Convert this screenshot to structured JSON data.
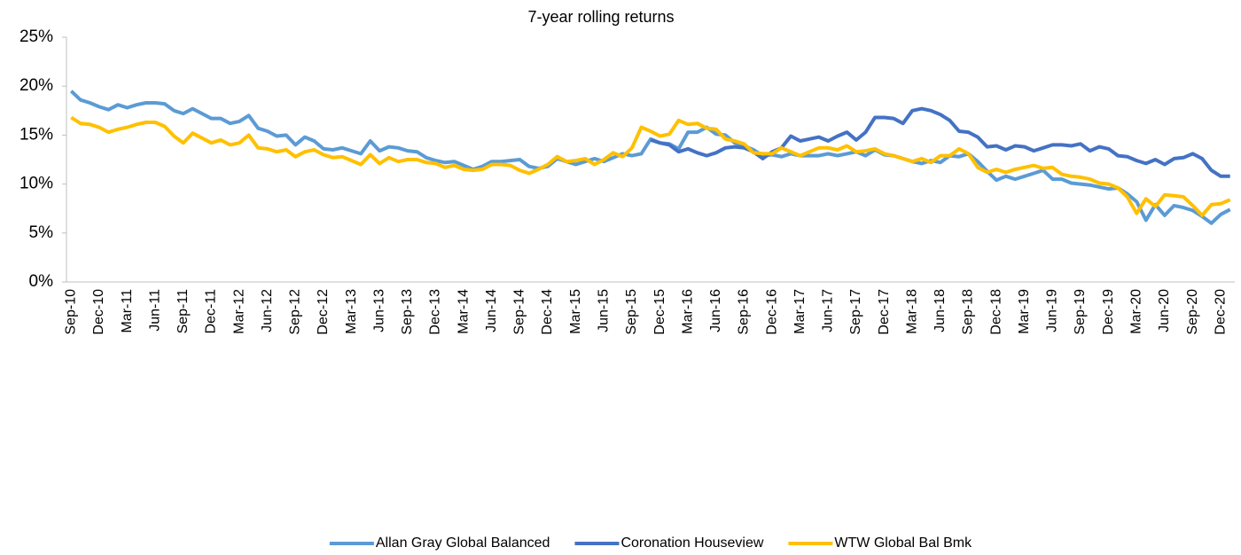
{
  "chart_data": {
    "type": "line",
    "title": "7-year rolling returns",
    "categories": [
      "Sep-10",
      null,
      null,
      "Dec-10",
      null,
      null,
      "Mar-11",
      null,
      null,
      "Jun-11",
      null,
      null,
      "Sep-11",
      null,
      null,
      "Dec-11",
      null,
      null,
      "Mar-12",
      null,
      null,
      "Jun-12",
      null,
      null,
      "Sep-12",
      null,
      null,
      "Dec-12",
      null,
      null,
      "Mar-13",
      null,
      null,
      "Jun-13",
      null,
      null,
      "Sep-13",
      null,
      null,
      "Dec-13",
      null,
      null,
      "Mar-14",
      null,
      null,
      "Jun-14",
      null,
      null,
      "Sep-14",
      null,
      null,
      "Dec-14",
      null,
      null,
      "Mar-15",
      null,
      null,
      "Jun-15",
      null,
      null,
      "Sep-15",
      null,
      null,
      "Dec-15",
      null,
      null,
      "Mar-16",
      null,
      null,
      "Jun-16",
      null,
      null,
      "Sep-16",
      null,
      null,
      "Dec-16",
      null,
      null,
      "Mar-17",
      null,
      null,
      "Jun-17",
      null,
      null,
      "Sep-17",
      null,
      null,
      "Dec-17",
      null,
      null,
      "Mar-18",
      null,
      null,
      "Jun-18",
      null,
      null,
      "Sep-18",
      null,
      null,
      "Dec-18",
      null,
      null,
      "Mar-19",
      null,
      null,
      "Jun-19",
      null,
      null,
      "Sep-19",
      null,
      null,
      "Dec-19",
      null,
      null,
      "Mar-20",
      null,
      null,
      "Jun-20",
      null,
      null,
      "Sep-20",
      null,
      null,
      "Dec-20",
      null
    ],
    "series": [
      {
        "name": "Allan Gray Global Balanced",
        "color": "#5b9bd5",
        "values": [
          19.5,
          18.6,
          18.3,
          17.9,
          17.6,
          18.1,
          17.8,
          18.1,
          18.3,
          18.3,
          18.2,
          17.5,
          17.2,
          17.7,
          17.2,
          16.7,
          16.7,
          16.2,
          16.4,
          17.0,
          15.7,
          15.4,
          14.9,
          15.0,
          14.0,
          14.8,
          14.4,
          13.6,
          13.5,
          13.7,
          13.4,
          13.1,
          14.4,
          13.4,
          13.8,
          13.7,
          13.4,
          13.3,
          12.7,
          12.4,
          12.2,
          12.3,
          11.9,
          11.5,
          11.8,
          12.3,
          12.3,
          12.4,
          12.5,
          11.8,
          11.6,
          11.8,
          12.6,
          12.3,
          12.0,
          12.3,
          12.6,
          12.3,
          12.7,
          13.1,
          12.9,
          13.1,
          14.6,
          14.2,
          14.1,
          13.6,
          15.3,
          15.3,
          15.8,
          15.1,
          15.0,
          14.2,
          13.9,
          13.5,
          12.9,
          13.0,
          12.8,
          13.1,
          12.9,
          12.9,
          12.9,
          13.1,
          12.9,
          13.1,
          13.3,
          12.9,
          13.5,
          13.0,
          12.9,
          12.6,
          12.3,
          12.1,
          12.4,
          12.2,
          12.9,
          12.8,
          13.1,
          12.3,
          11.3,
          10.4,
          10.8,
          10.5,
          10.8,
          11.1,
          11.4,
          10.5,
          10.5,
          10.1,
          10.0,
          9.9,
          9.7,
          9.5,
          9.6,
          9.0,
          8.2,
          6.3,
          7.9,
          6.8,
          7.8,
          7.6,
          7.3,
          6.7,
          6.0,
          6.9,
          7.4
        ]
      },
      {
        "name": "Coronation Houseview",
        "color": "#4472c4",
        "values": [
          null,
          null,
          null,
          null,
          null,
          null,
          null,
          null,
          null,
          null,
          null,
          null,
          null,
          null,
          null,
          null,
          null,
          null,
          null,
          null,
          null,
          null,
          null,
          null,
          null,
          null,
          null,
          null,
          null,
          null,
          null,
          null,
          null,
          null,
          null,
          null,
          null,
          null,
          null,
          null,
          null,
          null,
          null,
          null,
          null,
          null,
          null,
          null,
          null,
          null,
          null,
          null,
          null,
          null,
          null,
          null,
          null,
          null,
          null,
          null,
          null,
          null,
          14.5,
          14.2,
          14.0,
          13.3,
          13.6,
          13.2,
          12.9,
          13.2,
          13.7,
          13.8,
          13.7,
          13.3,
          12.6,
          13.3,
          13.7,
          14.9,
          14.4,
          14.6,
          14.8,
          14.4,
          14.9,
          15.3,
          14.5,
          15.3,
          16.8,
          16.8,
          16.7,
          16.2,
          17.5,
          17.7,
          17.5,
          17.1,
          16.5,
          15.4,
          15.3,
          14.8,
          13.8,
          13.9,
          13.5,
          13.9,
          13.8,
          13.4,
          13.7,
          14.0,
          14.0,
          13.9,
          14.1,
          13.4,
          13.8,
          13.6,
          12.9,
          12.8,
          12.4,
          12.1,
          12.5,
          12.0,
          12.6,
          12.7,
          13.1,
          12.6,
          11.4,
          10.8,
          10.8
        ]
      },
      {
        "name": "WTW Global Bal Bmk",
        "color": "#ffc000",
        "values": [
          16.8,
          16.2,
          16.1,
          15.8,
          15.3,
          15.6,
          15.8,
          16.1,
          16.3,
          16.3,
          15.9,
          14.9,
          14.2,
          15.2,
          14.7,
          14.2,
          14.5,
          14.0,
          14.2,
          15.0,
          13.7,
          13.6,
          13.3,
          13.5,
          12.8,
          13.3,
          13.5,
          13.0,
          12.7,
          12.8,
          12.4,
          12.0,
          13.0,
          12.1,
          12.7,
          12.3,
          12.5,
          12.5,
          12.2,
          12.1,
          11.7,
          11.9,
          11.5,
          11.4,
          11.5,
          12.0,
          12.0,
          11.9,
          11.4,
          11.1,
          11.5,
          12.0,
          12.8,
          12.3,
          12.4,
          12.6,
          12.0,
          12.5,
          13.2,
          12.8,
          13.7,
          15.8,
          15.4,
          14.9,
          15.1,
          16.5,
          16.1,
          16.2,
          15.7,
          15.6,
          14.6,
          14.4,
          14.1,
          13.2,
          13.1,
          13.1,
          13.7,
          13.3,
          12.9,
          13.3,
          13.7,
          13.7,
          13.5,
          13.9,
          13.3,
          13.4,
          13.6,
          13.1,
          12.9,
          12.6,
          12.3,
          12.6,
          12.2,
          12.9,
          12.9,
          13.6,
          13.1,
          11.7,
          11.2,
          11.5,
          11.2,
          11.5,
          11.7,
          11.9,
          11.6,
          11.7,
          11.0,
          10.8,
          10.7,
          10.5,
          10.1,
          10.0,
          9.6,
          8.7,
          7.0,
          8.5,
          7.7,
          8.9,
          8.8,
          8.7,
          7.8,
          6.8,
          7.9,
          8.0,
          8.4
        ]
      }
    ],
    "ylim": [
      0,
      25
    ],
    "yticks": [
      {
        "value": 0,
        "label": "0%"
      },
      {
        "value": 5,
        "label": "5%"
      },
      {
        "value": 10,
        "label": "10%"
      },
      {
        "value": 15,
        "label": "15%"
      },
      {
        "value": 20,
        "label": "20%"
      },
      {
        "value": 25,
        "label": "25%"
      }
    ],
    "grid": false,
    "legend": "bottom"
  }
}
